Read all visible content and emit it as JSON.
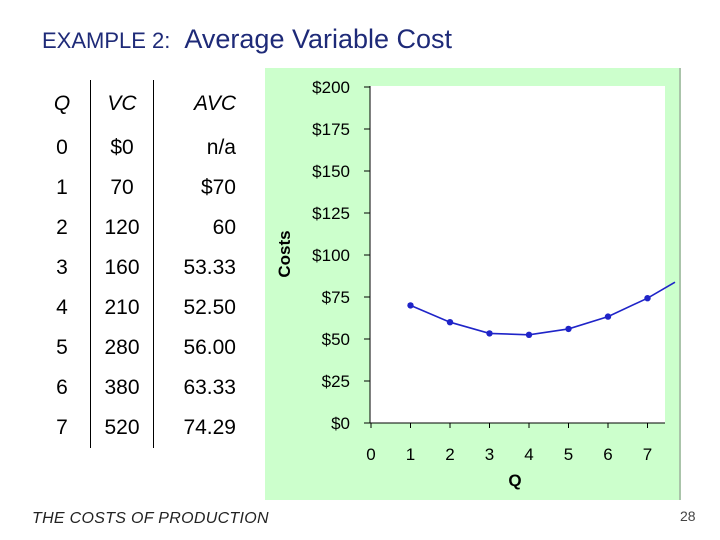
{
  "slide": {
    "title_prefix": "EXAMPLE 2:",
    "title_main": "Average Variable Cost",
    "footer": "THE COSTS OF PRODUCTION",
    "page_number": "28"
  },
  "table": {
    "headers": [
      "Q",
      "VC",
      "AVC"
    ],
    "rows": [
      [
        "0",
        "$0",
        "n/a"
      ],
      [
        "1",
        "70",
        "$70"
      ],
      [
        "2",
        "120",
        "60"
      ],
      [
        "3",
        "160",
        "53.33"
      ],
      [
        "4",
        "210",
        "52.50"
      ],
      [
        "5",
        "280",
        "56.00"
      ],
      [
        "6",
        "380",
        "63.33"
      ],
      [
        "7",
        "520",
        "74.29"
      ]
    ]
  },
  "colors": {
    "title": "#1e2a78",
    "panel_background": "#ccffcc",
    "plot_background": "#ffffff",
    "series": "#1f24c8"
  },
  "chart_data": {
    "type": "line",
    "title": "",
    "xlabel": "Q",
    "ylabel": "Costs",
    "x_ticks": [
      "0",
      "1",
      "2",
      "3",
      "4",
      "5",
      "6",
      "7"
    ],
    "y_ticks": [
      "$0",
      "$25",
      "$50",
      "$75",
      "$100",
      "$125",
      "$150",
      "$175",
      "$200"
    ],
    "xlim": [
      0,
      7.5
    ],
    "ylim": [
      0,
      200
    ],
    "grid": false,
    "legend": "none",
    "series": [
      {
        "x": [
          1,
          2,
          3,
          4,
          5,
          6,
          7
        ],
        "y": [
          70,
          60,
          53.33,
          52.5,
          56,
          63.33,
          74.29
        ]
      }
    ]
  }
}
